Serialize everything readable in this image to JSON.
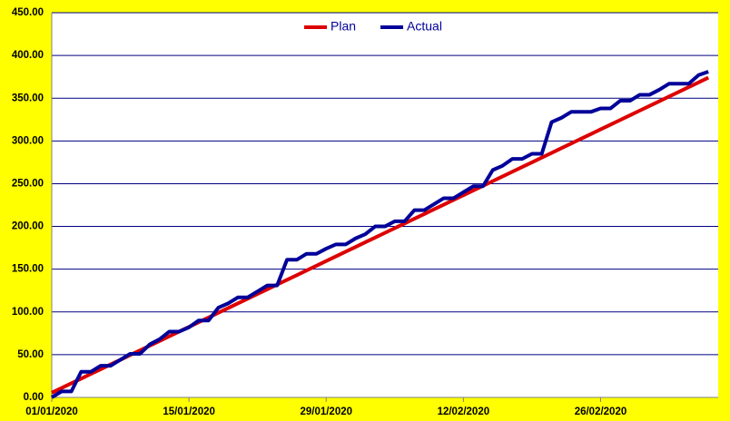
{
  "chart_data": {
    "type": "line",
    "x": [
      "01/01/2020",
      "02/01/2020",
      "03/01/2020",
      "04/01/2020",
      "05/01/2020",
      "06/01/2020",
      "07/01/2020",
      "08/01/2020",
      "09/01/2020",
      "10/01/2020",
      "11/01/2020",
      "12/01/2020",
      "13/01/2020",
      "14/01/2020",
      "15/01/2020",
      "16/01/2020",
      "17/01/2020",
      "18/01/2020",
      "19/01/2020",
      "20/01/2020",
      "21/01/2020",
      "22/01/2020",
      "23/01/2020",
      "24/01/2020",
      "25/01/2020",
      "26/01/2020",
      "27/01/2020",
      "28/01/2020",
      "29/01/2020",
      "30/01/2020",
      "31/01/2020",
      "01/02/2020",
      "02/02/2020",
      "03/02/2020",
      "04/02/2020",
      "05/02/2020",
      "06/02/2020",
      "07/02/2020",
      "08/02/2020",
      "09/02/2020",
      "10/02/2020",
      "11/02/2020",
      "12/02/2020",
      "13/02/2020",
      "14/02/2020",
      "15/02/2020",
      "16/02/2020",
      "17/02/2020",
      "18/02/2020",
      "19/02/2020",
      "20/02/2020",
      "21/02/2020",
      "22/02/2020",
      "23/02/2020",
      "24/02/2020",
      "25/02/2020",
      "26/02/2020",
      "27/02/2020",
      "28/02/2020",
      "29/02/2020",
      "01/03/2020",
      "02/03/2020",
      "03/03/2020",
      "04/03/2020",
      "05/03/2020",
      "06/03/2020",
      "07/03/2020",
      "08/03/2020"
    ],
    "series": [
      {
        "name": "Plan",
        "color": "#dd0000",
        "values": [
          5.5,
          11,
          16.5,
          22,
          27.5,
          33,
          38.5,
          44,
          49.5,
          55,
          60.5,
          66,
          71.5,
          77,
          82.5,
          88,
          93.5,
          99,
          104.5,
          110,
          115.5,
          121,
          126.5,
          132,
          137.5,
          143,
          148.5,
          154,
          159.5,
          165,
          170.5,
          176,
          181.5,
          187,
          192.5,
          198,
          203.5,
          209,
          214.5,
          220,
          225.5,
          231,
          236.5,
          242,
          247.5,
          253,
          258.5,
          264,
          269.5,
          275,
          280.5,
          286,
          291.5,
          297,
          302.5,
          308,
          313.5,
          319,
          324.5,
          330,
          335.5,
          341,
          346.5,
          352,
          357.5,
          363,
          368.5,
          374
        ]
      },
      {
        "name": "Actual",
        "color": "#000099",
        "values": [
          0,
          7,
          7,
          30,
          30,
          37,
          37,
          44,
          51,
          51,
          62,
          68,
          77,
          77,
          82,
          90,
          90,
          105,
          110,
          117,
          117,
          124,
          131,
          131,
          161,
          161,
          168,
          168,
          174,
          179,
          179,
          186,
          191,
          200,
          200,
          206,
          206,
          219,
          219,
          226,
          233,
          233,
          240,
          247,
          247,
          266,
          271,
          279,
          279,
          285,
          285,
          322,
          327,
          334,
          334,
          334,
          338,
          338,
          347,
          347,
          354,
          354,
          360,
          367,
          367,
          367,
          377,
          381
        ]
      }
    ],
    "xlim": [
      "01/01/2020",
      "09/03/2020"
    ],
    "xticks": [
      "01/01/2020",
      "15/01/2020",
      "29/01/2020",
      "12/02/2020",
      "26/02/2020"
    ],
    "ylim": [
      0,
      450
    ],
    "yticks": [
      {
        "value": 0,
        "label": "0.00"
      },
      {
        "value": 50,
        "label": "50.00"
      },
      {
        "value": 100,
        "label": "100.00"
      },
      {
        "value": 150,
        "label": "150.00"
      },
      {
        "value": 200,
        "label": "200.00"
      },
      {
        "value": 250,
        "label": "250.00"
      },
      {
        "value": 300,
        "label": "300.00"
      },
      {
        "value": 350,
        "label": "350.00"
      },
      {
        "value": 400,
        "label": "400.00"
      },
      {
        "value": 450,
        "label": "450.00"
      }
    ],
    "grid": true,
    "legend": "top"
  }
}
